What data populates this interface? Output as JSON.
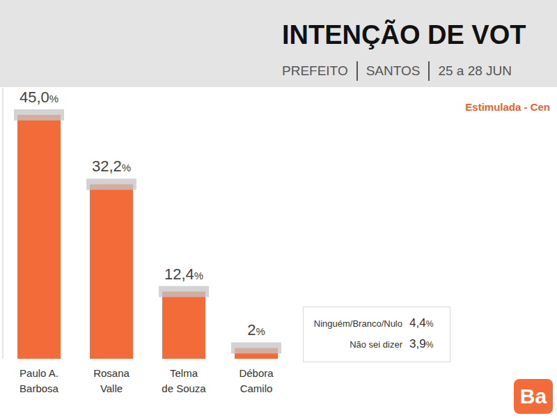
{
  "chart_data": {
    "type": "bar",
    "title": "INTENÇÃO DE VOT",
    "subtitle": [
      "PREFEITO",
      "SANTOS",
      "25 a 28 JUN"
    ],
    "annotation": "Estimulada - Cen",
    "logo": "Ba",
    "categories": [
      "Paulo A. Barbosa",
      "Rosana Valle",
      "Telma de Souza",
      "Débora Camilo"
    ],
    "values": [
      45.0,
      32.2,
      12.4,
      2
    ],
    "value_labels": [
      "45,0%",
      "32,2%",
      "12,4%",
      "2%"
    ],
    "data_labels": true,
    "color": "#f26b38",
    "ylim": [
      0,
      50
    ],
    "yticks": [],
    "tick_labels": "x",
    "grid": false,
    "others": [
      {
        "label": "Ninguém/Branco/Nulo",
        "value": 4.4,
        "value_label": "4,4%"
      },
      {
        "label": "Não sei dizer",
        "value": 3.9,
        "value_label": "3,9%"
      }
    ]
  }
}
